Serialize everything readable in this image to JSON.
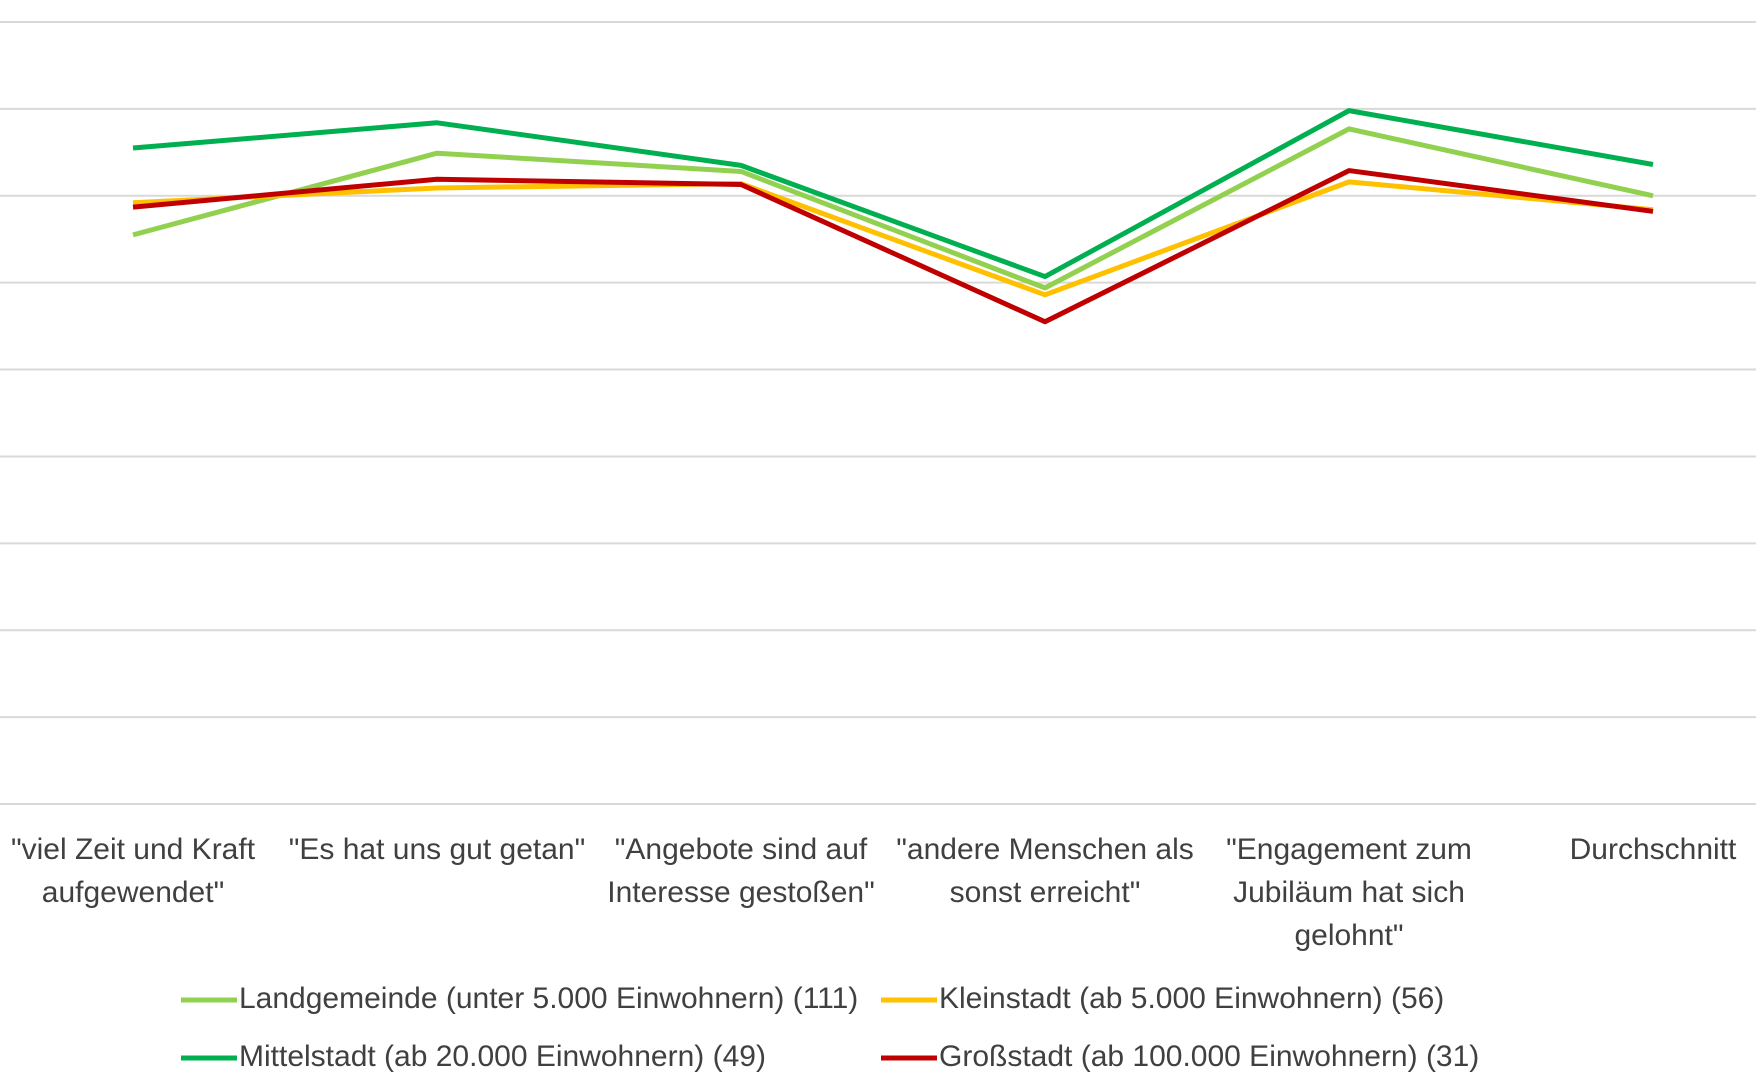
{
  "chart_data": {
    "type": "line",
    "categories": [
      "\"viel Zeit und Kraft aufgewendet\"",
      "\"Es hat uns gut getan\"",
      "\"Angebote sind auf Interesse gestoßen\"",
      "\"andere Menschen als sonst erreicht\"",
      "\"Engagement zum Jubiläum hat sich gelohnt\"",
      "Durchschnitt"
    ],
    "series": [
      {
        "name": "Landgemeinde (unter 5.000 Einwohnern) (111)",
        "color": "#92d050",
        "values": [
          6.55,
          7.49,
          7.28,
          5.94,
          7.77,
          7.0
        ]
      },
      {
        "name": "Kleinstadt (ab 5.000 Einwohnern) (56)",
        "color": "#ffc000",
        "values": [
          6.92,
          7.09,
          7.14,
          5.86,
          7.16,
          6.84
        ]
      },
      {
        "name": "Mittelstadt (ab 20.000 Einwohnern) (49)",
        "color": "#00b050",
        "values": [
          7.55,
          7.84,
          7.35,
          6.07,
          7.98,
          7.36
        ]
      },
      {
        "name": "Großstadt (ab 100.000 Einwohnern) (31)",
        "color": "#c00000",
        "values": [
          6.87,
          7.19,
          7.13,
          5.55,
          7.29,
          6.82
        ]
      }
    ],
    "ylim": [
      0,
      9
    ],
    "yticks": [
      0,
      1,
      2,
      3,
      4,
      5,
      6,
      7,
      8,
      9
    ],
    "grid": true
  }
}
